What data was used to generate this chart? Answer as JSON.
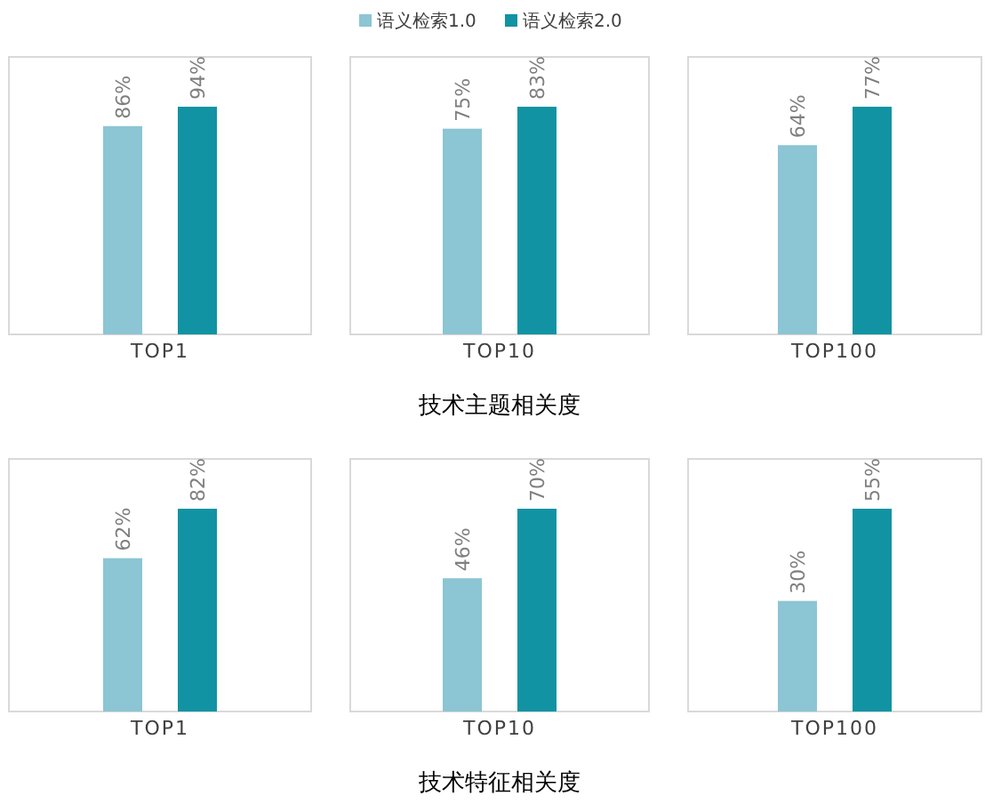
{
  "chart_data": [
    {
      "type": "bar",
      "categories": [
        "TOP1"
      ],
      "legend": "top",
      "series": [
        {
          "name": "语义检索1.0",
          "color": "#8cc5d3",
          "values": [
            86
          ],
          "value_labels": [
            "86%"
          ]
        },
        {
          "name": "语义检索2.0",
          "color": "#1193a3",
          "values": [
            94
          ],
          "value_labels": [
            "94%"
          ]
        }
      ]
    },
    {
      "type": "bar",
      "categories": [
        "TOP10"
      ],
      "xlabel": "技术主题相关度",
      "series": [
        {
          "color": "#8cc5d3",
          "values": [
            75
          ],
          "value_labels": [
            "75%"
          ]
        },
        {
          "color": "#1193a3",
          "values": [
            83
          ],
          "value_labels": [
            "83%"
          ]
        }
      ]
    },
    {
      "type": "bar",
      "categories": [
        "TOP100"
      ],
      "series": [
        {
          "color": "#8cc5d3",
          "values": [
            64
          ],
          "value_labels": [
            "64%"
          ]
        },
        {
          "color": "#1193a3",
          "values": [
            77
          ],
          "value_labels": [
            "77%"
          ]
        }
      ]
    },
    {
      "type": "bar",
      "categories": [
        "TOP1"
      ],
      "series": [
        {
          "color": "#8cc5d3",
          "values": [
            62
          ],
          "value_labels": [
            "62%"
          ]
        },
        {
          "color": "#1193a3",
          "values": [
            82
          ],
          "value_labels": [
            "82%"
          ]
        }
      ]
    },
    {
      "type": "bar",
      "categories": [
        "TOP10"
      ],
      "xlabel": "技术特征相关度",
      "series": [
        {
          "color": "#8cc5d3",
          "values": [
            46
          ],
          "value_labels": [
            "46%"
          ]
        },
        {
          "color": "#1193a3",
          "values": [
            70
          ],
          "value_labels": [
            "70%"
          ]
        }
      ]
    },
    {
      "type": "bar",
      "categories": [
        "TOP100"
      ],
      "series": [
        {
          "color": "#8cc5d3",
          "values": [
            30
          ],
          "value_labels": [
            "30%"
          ]
        },
        {
          "color": "#1193a3",
          "values": [
            55
          ],
          "value_labels": [
            "55%"
          ]
        }
      ]
    }
  ]
}
